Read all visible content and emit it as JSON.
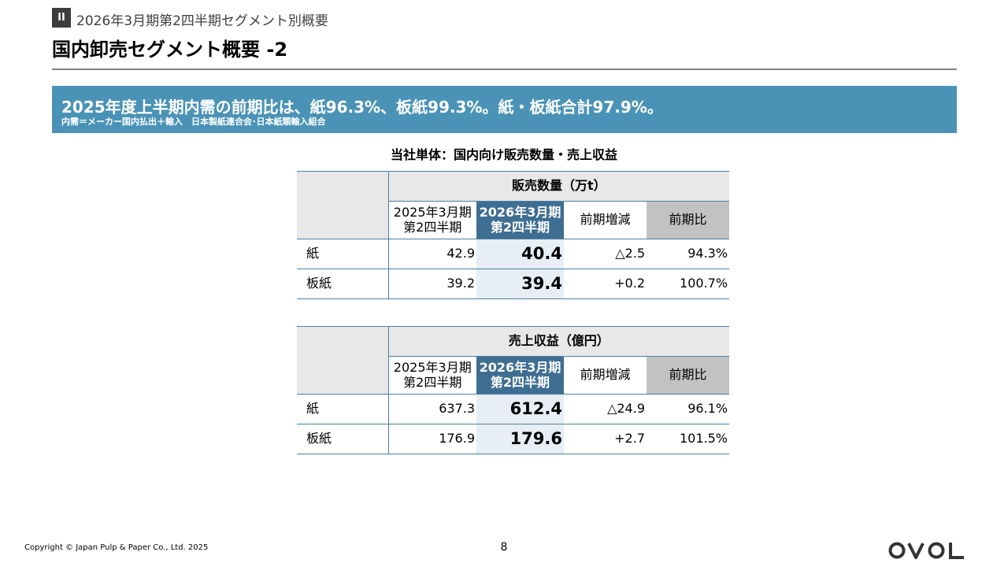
{
  "header": {
    "section_badge": "II",
    "section_title": "2026年3月期第2四半期セグメント別概要",
    "page_title": "国内卸売セグメント概要 -2"
  },
  "banner": {
    "headline": "2025年度上半期内需の前期比は、紙96.3%、板紙99.3%。紙・板紙合計97.9%。",
    "source_note": "内需＝メーカー国内払出＋輸入　日本製紙連合会･日本紙類輸入組合"
  },
  "subheading": "当社単体：国内向け販売数量・売上収益",
  "tables": [
    {
      "title": "販売数量（万t）",
      "columns": [
        "2025年3月期\n第2四半期",
        "2026年3月期\n第2四半期",
        "前期増減",
        "前期比"
      ],
      "rows": [
        {
          "label": "紙",
          "prev": "42.9",
          "current": "40.4",
          "diff": "△2.5",
          "ratio": "94.3%"
        },
        {
          "label": "板紙",
          "prev": "39.2",
          "current": "39.4",
          "diff": "+0.2",
          "ratio": "100.7%"
        }
      ]
    },
    {
      "title": "売上収益（億円）",
      "columns": [
        "2025年3月期\n第2四半期",
        "2026年3月期\n第2四半期",
        "前期増減",
        "前期比"
      ],
      "rows": [
        {
          "label": "紙",
          "prev": "637.3",
          "current": "612.4",
          "diff": "△24.9",
          "ratio": "96.1%"
        },
        {
          "label": "板紙",
          "prev": "176.9",
          "current": "179.6",
          "diff": "+2.7",
          "ratio": "101.5%"
        }
      ]
    }
  ],
  "footer": {
    "copyright": "Copyright © Japan Pulp & Paper Co., Ltd. 2025",
    "page_number": "8",
    "logo_text": "OVOL"
  },
  "colors": {
    "banner": "#4a93b7",
    "current_header": "#3f6e93",
    "current_cell": "#e7eef5",
    "ratio_header": "#c2c2c2",
    "table_border": "#4a7fa3"
  }
}
